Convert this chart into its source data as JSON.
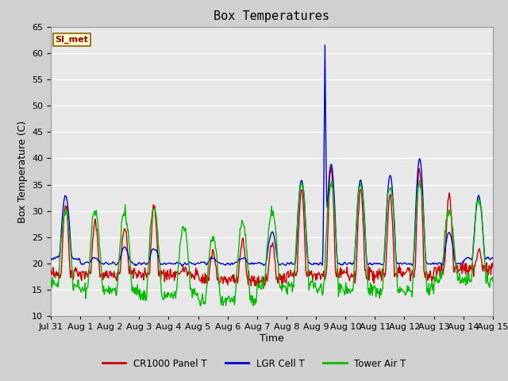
{
  "title": "Box Temperatures",
  "ylabel": "Box Temperature (C)",
  "xlabel": "Time",
  "ylim": [
    10,
    65
  ],
  "yticks": [
    10,
    15,
    20,
    25,
    30,
    35,
    40,
    45,
    50,
    55,
    60,
    65
  ],
  "plot_bg_color": "#e8e8e8",
  "grid_color": "#ffffff",
  "annotation_text": "SI_met",
  "annotation_bg": "#ffffcc",
  "annotation_border": "#8b0000",
  "legend_entries": [
    "CR1000 Panel T",
    "LGR Cell T",
    "Tower Air T"
  ],
  "line_colors": [
    "#cc0000",
    "#0000cc",
    "#00bb00"
  ],
  "line_width": 1.0,
  "x_tick_labels": [
    "Jul 31",
    "Aug 1",
    "Aug 2",
    "Aug 3",
    "Aug 4",
    "Aug 5",
    "Aug 6",
    "Aug 7",
    "Aug 8",
    "Aug 9",
    "Aug 10",
    "Aug 11",
    "Aug 12",
    "Aug 13",
    "Aug 14",
    "Aug 15"
  ],
  "title_fontsize": 11,
  "label_fontsize": 9,
  "tick_fontsize": 8
}
